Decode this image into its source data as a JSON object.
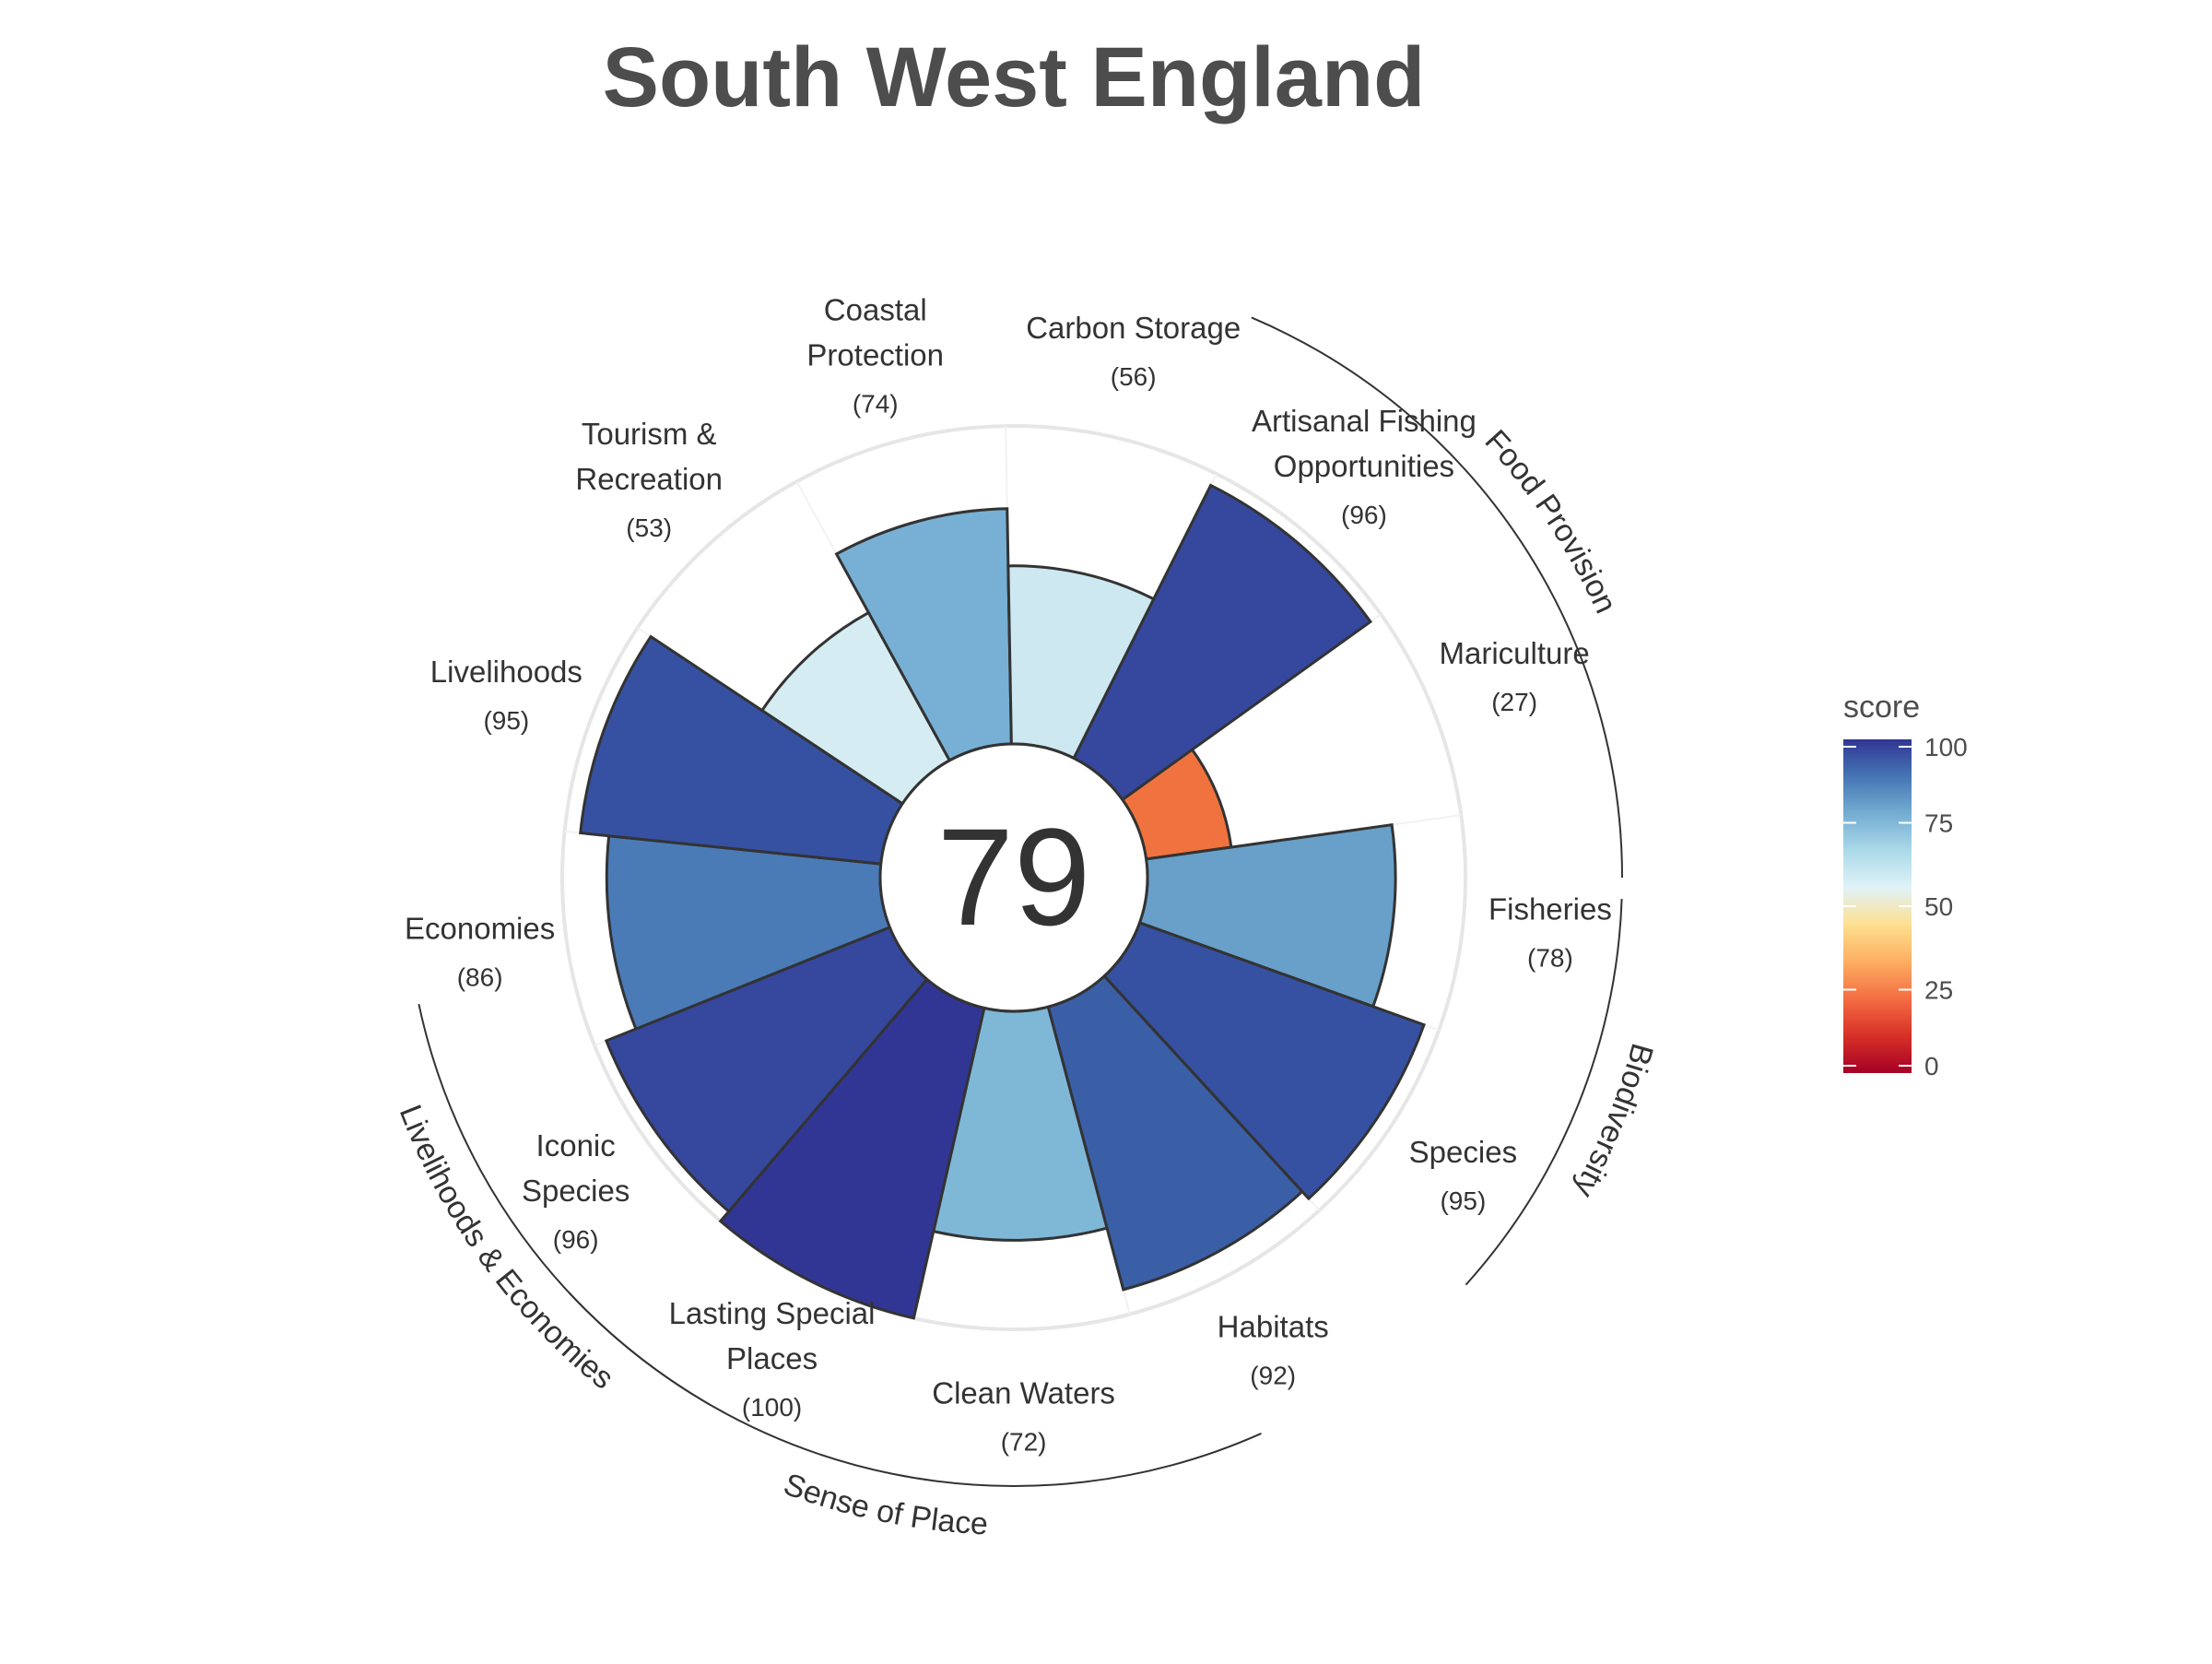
{
  "chart_data": {
    "type": "rose",
    "title": "South West England",
    "center_score": "79",
    "ylim": [
      0,
      100
    ],
    "goals": [
      {
        "name": "Artisanal Fishing Opportunities",
        "score": 96,
        "label_lines": [
          "Artisanal Fishing",
          "Opportunities"
        ],
        "score_label": "(96)",
        "color": "#35489e"
      },
      {
        "name": "Mariculture",
        "score": 27,
        "label_lines": [
          "Mariculture"
        ],
        "score_label": "(27)",
        "color": "#f0733f"
      },
      {
        "name": "Fisheries",
        "score": 78,
        "label_lines": [
          "Fisheries"
        ],
        "score_label": "(78)",
        "color": "#68a0c9"
      },
      {
        "name": "Species",
        "score": 95,
        "label_lines": [
          "Species"
        ],
        "score_label": "(95)",
        "color": "#3651a2"
      },
      {
        "name": "Habitats",
        "score": 92,
        "label_lines": [
          "Habitats"
        ],
        "score_label": "(92)",
        "color": "#3a5fa7"
      },
      {
        "name": "Clean Waters",
        "score": 72,
        "label_lines": [
          "Clean Waters"
        ],
        "score_label": "(72)",
        "color": "#7fb7d7"
      },
      {
        "name": "Lasting Special Places",
        "score": 100,
        "label_lines": [
          "Lasting Special",
          "Places"
        ],
        "score_label": "(100)",
        "color": "#313695"
      },
      {
        "name": "Iconic Species",
        "score": 96,
        "label_lines": [
          "Iconic",
          "Species"
        ],
        "score_label": "(96)",
        "color": "#35489e"
      },
      {
        "name": "Economies",
        "score": 86,
        "label_lines": [
          "Economies"
        ],
        "score_label": "(86)",
        "color": "#4a7bb7"
      },
      {
        "name": "Livelihoods",
        "score": 95,
        "label_lines": [
          "Livelihoods"
        ],
        "score_label": "(95)",
        "color": "#3651a2"
      },
      {
        "name": "Tourism & Recreation",
        "score": 53,
        "label_lines": [
          "Tourism &",
          "Recreation"
        ],
        "score_label": "(53)",
        "color": "#d6ecf3"
      },
      {
        "name": "Coastal Protection",
        "score": 74,
        "label_lines": [
          "Coastal",
          "Protection"
        ],
        "score_label": "(74)",
        "color": "#77b0d4"
      },
      {
        "name": "Carbon Storage",
        "score": 56,
        "label_lines": [
          "Carbon Storage"
        ],
        "score_label": "(56)",
        "color": "#cde8f1"
      }
    ],
    "groups": [
      {
        "name": "Food Provision"
      },
      {
        "name": "Biodiversity"
      },
      {
        "name": "Sense of Place"
      },
      {
        "name": "Livelihoods & Economies"
      }
    ],
    "legend": {
      "title": "score",
      "ticks": [
        "0",
        "25",
        "50",
        "75",
        "100"
      ],
      "colors": [
        "#a50026",
        "#d73027",
        "#f46d43",
        "#fdae61",
        "#fee090",
        "#e0f3f8",
        "#abd9e9",
        "#74add1",
        "#4575b4",
        "#313695"
      ]
    }
  }
}
